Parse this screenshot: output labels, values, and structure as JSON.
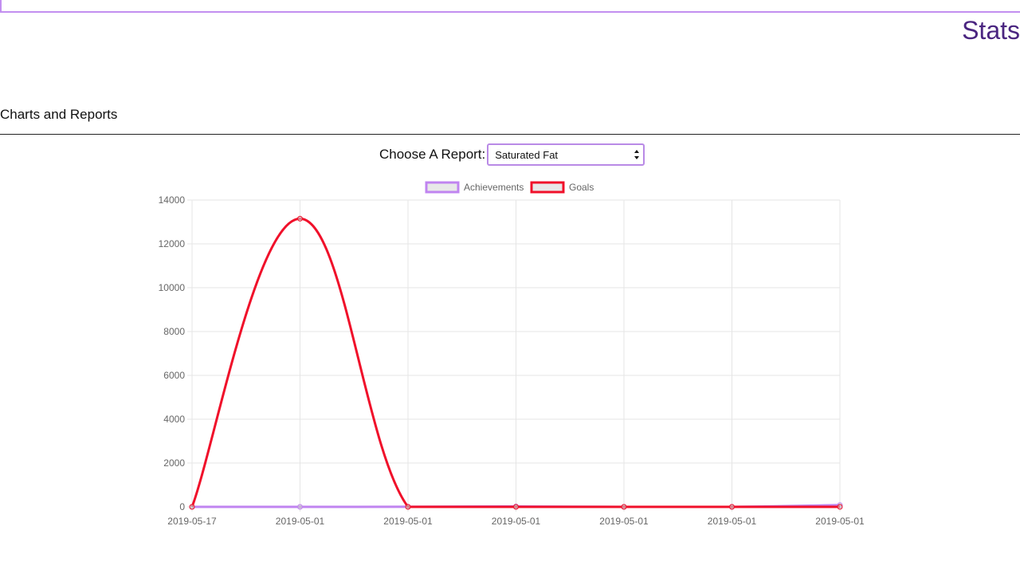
{
  "header": {
    "title": "Stats"
  },
  "section": {
    "title": "Charts and Reports"
  },
  "report": {
    "label": "Choose A Report:",
    "selected": "Saturated Fat"
  },
  "colors": {
    "accent": "#b77ff0",
    "title": "#4a2580",
    "achievements": "#c084f0",
    "goals": "#f0102a",
    "grid": "#e5e5e5",
    "tick_text": "#666666"
  },
  "chart_data": {
    "type": "line",
    "categories": [
      "2019-05-17",
      "2019-05-01",
      "2019-05-01",
      "2019-05-01",
      "2019-05-01",
      "2019-05-01",
      "2019-05-01"
    ],
    "series": [
      {
        "name": "Achievements",
        "color": "#c084f0",
        "values": [
          0,
          0,
          5,
          20,
          0,
          0,
          80
        ]
      },
      {
        "name": "Goals",
        "color": "#f0102a",
        "values": [
          0,
          13150,
          0,
          0,
          0,
          0,
          0
        ]
      }
    ],
    "ylim": [
      0,
      14000
    ],
    "yticks": [
      0,
      2000,
      4000,
      6000,
      8000,
      10000,
      12000,
      14000
    ],
    "legend": "top",
    "grid": true,
    "title": "",
    "xlabel": "",
    "ylabel": ""
  }
}
